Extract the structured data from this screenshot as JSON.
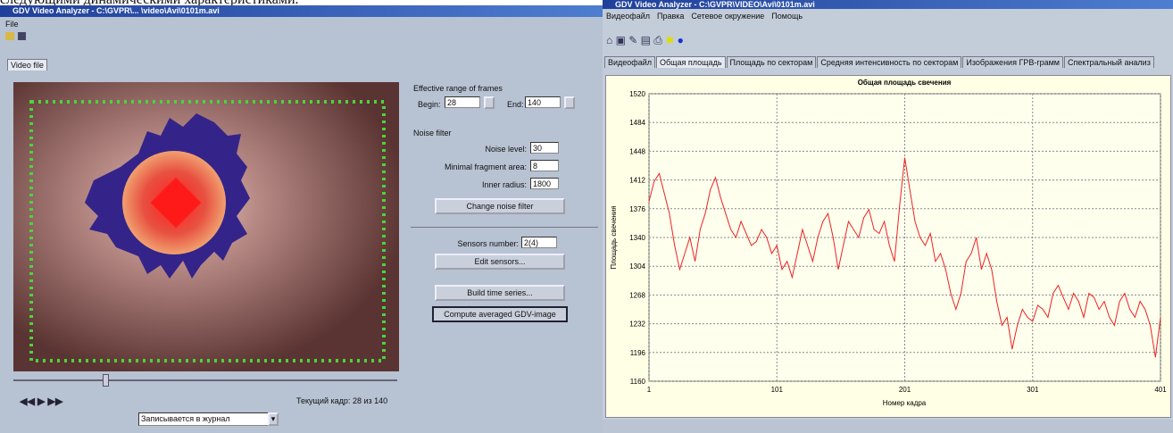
{
  "caption": "следующими динамическими характеристиками.",
  "left_window": {
    "title": "GDV Video Analyzer - C:\\GVPR\\... \\video\\Avi\\0101m.avi",
    "menu": [
      "File"
    ],
    "tab": "Video file",
    "range_label": "Effective range of frames",
    "begin_label": "Begin:",
    "begin": "28",
    "end_label": "End:",
    "end": "140",
    "noise_label": "Noise filter",
    "noise_level_label": "Noise level:",
    "noise_level": "30",
    "min_area_label": "Minimal fragment area:",
    "min_area": "8",
    "inner_radius_label": "Inner radius:",
    "inner_radius": "1800",
    "change_button": "Change noise filter",
    "sensors_label": "Sensors number:",
    "sensors": "2(4)",
    "edit_button": "Edit sensors...",
    "build_button": "Build time series...",
    "compute_button": "Compute averaged GDV-image",
    "frame_label": "Текущий кадр:",
    "frame_value": "28 из 140",
    "dropdown": "Записывается в журнал"
  },
  "right_window": {
    "title": "GDV Video Analyzer - C:\\GVPR\\VIDEO\\Avi\\0101m.avi",
    "menu": [
      "Видеофайл",
      "Правка",
      "Сетевое окружение",
      "Помощь"
    ],
    "tabs": [
      "Видеофайл",
      "Общая площадь",
      "Площадь по секторам",
      "Средняя интенсивность по секторам",
      "Изображения ГРВ-грамм",
      "Спектральный анализ"
    ],
    "active_tab": 1
  },
  "chart_data": {
    "type": "line",
    "title": "Общая площадь свечения",
    "x_label": "Номер кадра",
    "y_label": "Площадь свечения",
    "color": "#ee2222",
    "grid": true,
    "xlim": [
      1,
      401
    ],
    "ylim": [
      1160,
      1520
    ],
    "xticks": [
      1,
      101,
      201,
      301,
      401
    ],
    "yticks": [
      1160,
      1196,
      1232,
      1268,
      1304,
      1340,
      1376,
      1412,
      1448,
      1484,
      1520
    ],
    "x": [
      1,
      5,
      9,
      13,
      17,
      21,
      25,
      29,
      33,
      37,
      41,
      45,
      49,
      53,
      57,
      61,
      65,
      69,
      73,
      77,
      81,
      85,
      89,
      93,
      97,
      101,
      105,
      109,
      113,
      117,
      121,
      125,
      129,
      133,
      137,
      141,
      145,
      149,
      153,
      157,
      161,
      165,
      169,
      173,
      177,
      181,
      185,
      189,
      193,
      197,
      201,
      205,
      209,
      213,
      217,
      221,
      225,
      229,
      233,
      237,
      241,
      245,
      249,
      253,
      257,
      261,
      265,
      269,
      273,
      277,
      281,
      285,
      289,
      293,
      297,
      301,
      305,
      309,
      313,
      317,
      321,
      325,
      329,
      333,
      337,
      341,
      345,
      349,
      353,
      357,
      361,
      365,
      369,
      373,
      377,
      381,
      385,
      389,
      393,
      397,
      401
    ],
    "values": [
      1385,
      1410,
      1420,
      1395,
      1370,
      1330,
      1300,
      1320,
      1340,
      1310,
      1350,
      1370,
      1400,
      1415,
      1390,
      1370,
      1350,
      1340,
      1360,
      1345,
      1330,
      1335,
      1350,
      1340,
      1320,
      1330,
      1300,
      1310,
      1290,
      1320,
      1350,
      1330,
      1310,
      1340,
      1360,
      1370,
      1340,
      1300,
      1330,
      1360,
      1350,
      1340,
      1365,
      1375,
      1350,
      1345,
      1360,
      1330,
      1310,
      1380,
      1440,
      1400,
      1360,
      1340,
      1330,
      1345,
      1310,
      1320,
      1300,
      1270,
      1250,
      1270,
      1310,
      1320,
      1340,
      1300,
      1320,
      1300,
      1260,
      1230,
      1240,
      1200,
      1230,
      1250,
      1240,
      1235,
      1255,
      1250,
      1240,
      1270,
      1280,
      1265,
      1250,
      1270,
      1260,
      1240,
      1270,
      1265,
      1250,
      1260,
      1240,
      1230,
      1260,
      1270,
      1250,
      1240,
      1260,
      1250,
      1230,
      1190,
      1240
    ]
  }
}
